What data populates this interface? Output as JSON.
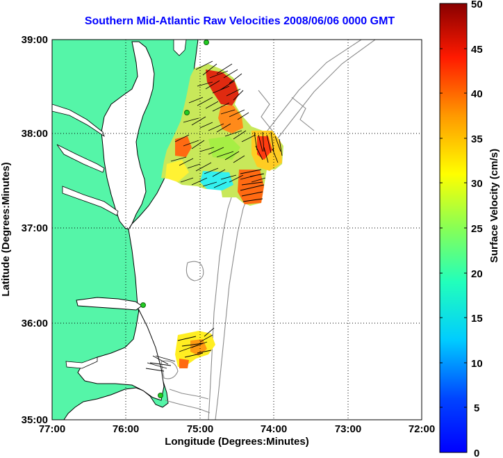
{
  "title": "Southern Mid-Atlantic Raw Velocities 2008/06/06 0000 GMT",
  "colors": {
    "land": "#55f5a8",
    "land_edge": "#2fbf73",
    "coastline": "#000000",
    "bathymetry": "#8a8a8a",
    "title": "#0000ff",
    "station": "#22cc22"
  },
  "map": {
    "xlabel": "Longitude (Degrees:Minutes)",
    "ylabel": "Latitude (Degrees:Minutes)",
    "x_ticks": [
      "77:00",
      "76:00",
      "75:00",
      "74:00",
      "73:00",
      "72:00"
    ],
    "y_ticks": [
      "39:00",
      "38:00",
      "37:00",
      "36:00",
      "35:00"
    ],
    "lon_range": [
      -77,
      -72
    ],
    "lat_range": [
      35,
      39
    ],
    "grid": "dotted"
  },
  "colorbar": {
    "label": "Surface Velocity (cm/s)",
    "ticks": [
      "50",
      "45",
      "40",
      "35",
      "30",
      "25",
      "20",
      "15",
      "10",
      "5",
      "0"
    ],
    "range": [
      0,
      50
    ],
    "colormap": "jet"
  },
  "stations": [
    {
      "lon": -74.9,
      "lat": 39.0
    },
    {
      "lon": -75.1,
      "lat": 38.23
    },
    {
      "lon": -75.73,
      "lat": 36.17
    },
    {
      "lon": -75.51,
      "lat": 35.25
    }
  ]
}
